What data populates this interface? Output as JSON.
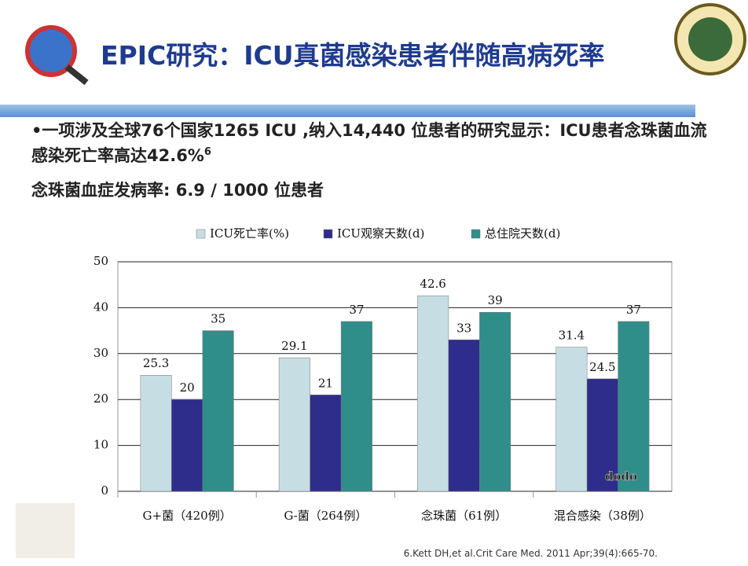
{
  "slide": {
    "title": "EPIC研究：ICU真菌感染患者伴随高病死率",
    "bullet": {
      "text": "•一项涉及全球76个国家1265 ICU ,纳入14,440 位患者的研究显示：ICU患者念珠菌血流感染死亡率高达42.6%",
      "superscript": "6"
    },
    "incidence": "念珠菌血症发病率: 6.9 / 1000 位患者",
    "reference": "6.Kett DH,et al.Crit Care Med. 2011 Apr;39(4):665-70.",
    "watermark": "dodo"
  },
  "chart_data": {
    "type": "bar",
    "categories": [
      "G+菌（420例）",
      "G-菌（264例）",
      "念珠菌（61例）",
      "混合感染（38例）"
    ],
    "series": [
      {
        "name": "ICU死亡率(%)",
        "color": "#c6dee3",
        "values": [
          25.3,
          29.1,
          42.6,
          31.4
        ]
      },
      {
        "name": "ICU观察天数(d)",
        "color": "#2e2d8c",
        "values": [
          20,
          21,
          33,
          24.5
        ]
      },
      {
        "name": "总住院天数(d)",
        "color": "#2f8e8a",
        "values": [
          35,
          37,
          39,
          37
        ]
      }
    ],
    "ylim": [
      0,
      50
    ],
    "yticks": [
      0,
      10,
      20,
      30,
      40,
      50
    ],
    "grid": true,
    "legend": "top"
  }
}
